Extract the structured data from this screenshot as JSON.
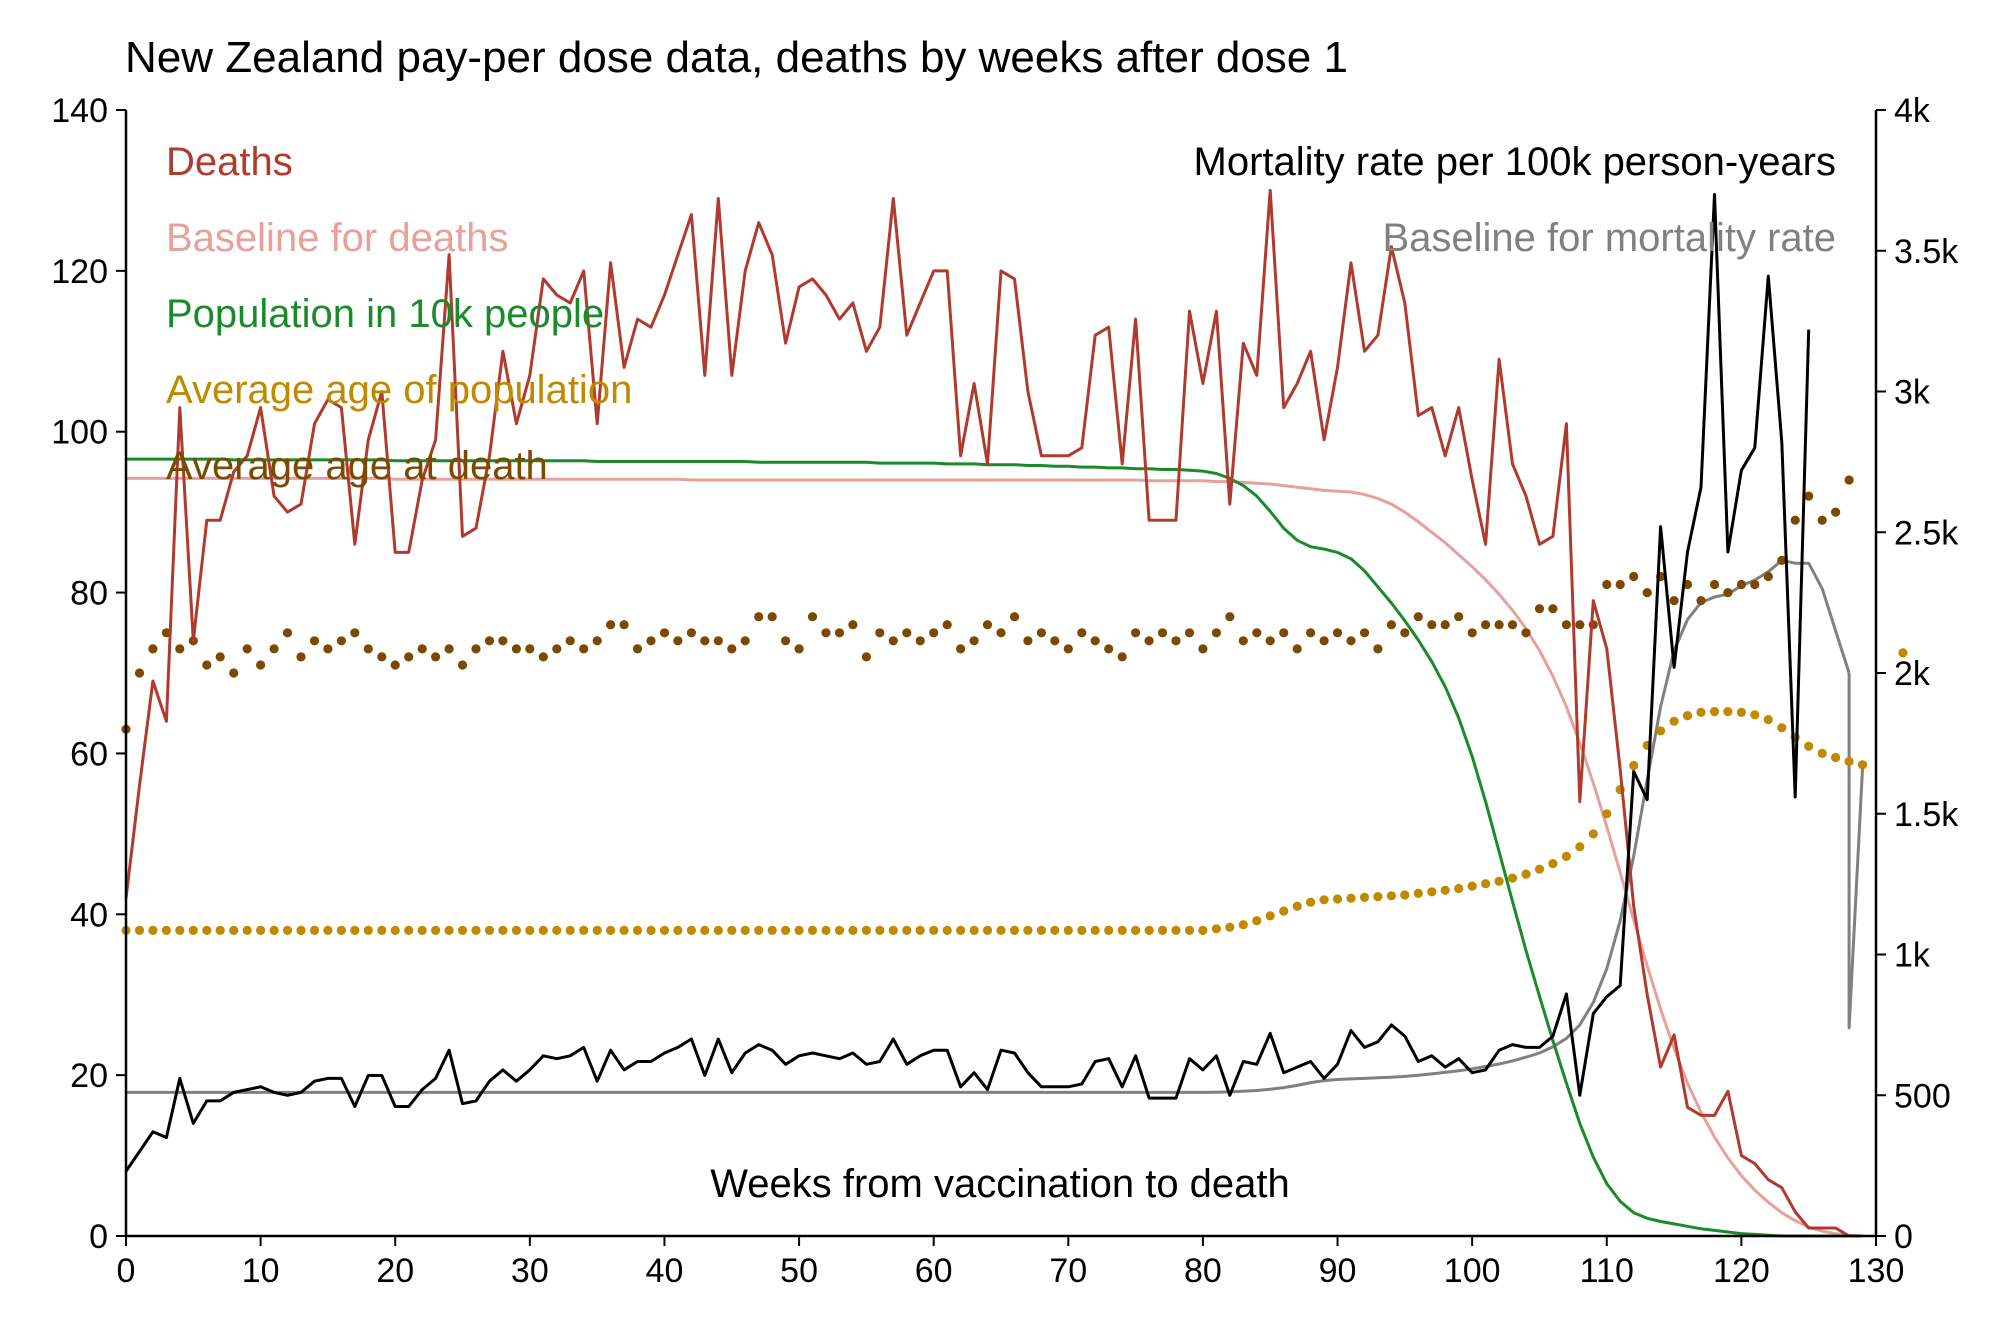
{
  "chart_data": {
    "type": "line",
    "title": "New Zealand pay-per dose data, deaths by weeks after dose 1",
    "xlabel": "Weeks from vaccination to death",
    "xlim": [
      0,
      130
    ],
    "x_ticks": [
      0,
      10,
      20,
      30,
      40,
      50,
      60,
      70,
      80,
      90,
      100,
      110,
      120,
      130
    ],
    "ylim_left": [
      0,
      140
    ],
    "y_ticks_left": [
      0,
      20,
      40,
      60,
      80,
      100,
      120,
      140
    ],
    "ylim_right": [
      0,
      4000
    ],
    "y_ticks_right": [
      0,
      500,
      1000,
      1500,
      2000,
      2500,
      3000,
      3500,
      4000
    ],
    "y_ticklabels_right": [
      "0",
      "500",
      "1k",
      "1.5k",
      "2k",
      "2.5k",
      "3k",
      "3.5k",
      "4k"
    ],
    "grid": false,
    "legend_left": [
      "Deaths",
      "Baseline for deaths",
      "Population in 10k people",
      "Average age of population",
      "Average age at death"
    ],
    "legend_right": [
      "Mortality rate per 100k person-years",
      "Baseline for mortality rate"
    ],
    "colors": {
      "deaths": "#b03a2e",
      "baseline_deaths": "#e8a09a",
      "population": "#1a8a2a",
      "avg_age_pop": "#bf8a00",
      "avg_age_death": "#7a4a00",
      "mortality": "#000000",
      "baseline_mortality": "#808080"
    },
    "series": [
      {
        "name": "Deaths",
        "axis": "left",
        "style": "line",
        "values": [
          42,
          56,
          69,
          64,
          103,
          74,
          89,
          89,
          95,
          97,
          103,
          92,
          90,
          91,
          101,
          104,
          103,
          86,
          99,
          105,
          85,
          85,
          94,
          99,
          122,
          87,
          88,
          97,
          110,
          101,
          107,
          119,
          117,
          116,
          120,
          101,
          121,
          108,
          114,
          113,
          117,
          122,
          127,
          107,
          129,
          107,
          120,
          126,
          122,
          111,
          118,
          119,
          117,
          114,
          116,
          110,
          113,
          129,
          112,
          116,
          120,
          120,
          97,
          106,
          96,
          120,
          119,
          105,
          97,
          97,
          97,
          98,
          112,
          113,
          96,
          114,
          89,
          89,
          89,
          115,
          106,
          115,
          91,
          111,
          107,
          130,
          103,
          106,
          110,
          99,
          108,
          121,
          110,
          112,
          123,
          116,
          102,
          103,
          97,
          103,
          94,
          86,
          109,
          96,
          92,
          86,
          87,
          101,
          54,
          79,
          73,
          58,
          41,
          30,
          21,
          25,
          16,
          15,
          15,
          18,
          10,
          9,
          7,
          6,
          3,
          1,
          1,
          1,
          0,
          0
        ]
      },
      {
        "name": "Baseline for deaths",
        "axis": "left",
        "style": "line",
        "values": [
          94.2,
          94.2,
          94.2,
          94.2,
          94.2,
          94.2,
          94.2,
          94.2,
          94.2,
          94.2,
          94.2,
          94.2,
          94.2,
          94.2,
          94.2,
          94.2,
          94.2,
          94.2,
          94.2,
          94.2,
          94.1,
          94.1,
          94.1,
          94.1,
          94.1,
          94.1,
          94.1,
          94.1,
          94.1,
          94.1,
          94.1,
          94.1,
          94.1,
          94.1,
          94.1,
          94.1,
          94.1,
          94.1,
          94.1,
          94.1,
          94.1,
          94.1,
          94.0,
          94.0,
          94.0,
          94.0,
          94.0,
          94.0,
          94.0,
          94.0,
          94.0,
          94.0,
          94.0,
          94.0,
          94.0,
          94.0,
          94.0,
          94.0,
          94.0,
          94.0,
          94.0,
          94.0,
          94.0,
          94.0,
          94.0,
          94.0,
          94.0,
          94.0,
          94.0,
          94.0,
          94.0,
          94.0,
          94.0,
          94.0,
          94.0,
          94.0,
          93.9,
          93.9,
          93.9,
          93.9,
          93.9,
          93.8,
          93.8,
          93.7,
          93.6,
          93.5,
          93.3,
          93.1,
          92.9,
          92.7,
          92.6,
          92.5,
          92.2,
          91.7,
          91.0,
          90.0,
          88.8,
          87.5,
          86.2,
          84.7,
          83.2,
          81.6,
          79.8,
          77.8,
          75.5,
          72.8,
          69.6,
          65.8,
          61.3,
          56.3,
          50.9,
          45.2,
          39.3,
          33.6,
          28.2,
          23.3,
          19.0,
          15.4,
          12.3,
          9.7,
          7.5,
          5.7,
          4.2,
          2.9,
          1.9,
          1.1,
          0.6,
          0.3,
          0.1,
          0.0
        ]
      },
      {
        "name": "Population in 10k people",
        "axis": "left",
        "style": "line",
        "values": [
          96.6,
          96.6,
          96.6,
          96.6,
          96.6,
          96.6,
          96.6,
          96.6,
          96.5,
          96.5,
          96.5,
          96.5,
          96.5,
          96.5,
          96.5,
          96.5,
          96.5,
          96.5,
          96.5,
          96.5,
          96.4,
          96.4,
          96.4,
          96.4,
          96.4,
          96.4,
          96.4,
          96.4,
          96.4,
          96.4,
          96.4,
          96.4,
          96.4,
          96.4,
          96.4,
          96.3,
          96.3,
          96.3,
          96.3,
          96.3,
          96.3,
          96.3,
          96.3,
          96.3,
          96.3,
          96.3,
          96.3,
          96.2,
          96.2,
          96.2,
          96.2,
          96.2,
          96.2,
          96.2,
          96.2,
          96.2,
          96.1,
          96.1,
          96.1,
          96.1,
          96.1,
          96.0,
          96.0,
          96.0,
          95.9,
          95.9,
          95.9,
          95.8,
          95.8,
          95.7,
          95.7,
          95.6,
          95.6,
          95.5,
          95.5,
          95.4,
          95.4,
          95.3,
          95.3,
          95.2,
          95.1,
          94.8,
          94.2,
          93.3,
          92.0,
          90.1,
          88.0,
          86.5,
          85.7,
          85.4,
          85.0,
          84.2,
          82.7,
          80.7,
          78.7,
          76.5,
          74.1,
          71.4,
          68.3,
          64.4,
          59.6,
          54.0,
          47.8,
          41.6,
          35.5,
          29.8,
          24.3,
          19.0,
          14.0,
          9.8,
          6.5,
          4.3,
          2.9,
          2.2,
          1.8,
          1.5,
          1.2,
          0.9,
          0.7,
          0.5,
          0.3,
          0.2,
          0.1,
          0.0,
          0.0,
          0.0,
          0.0,
          0.0,
          0.0,
          0.0
        ]
      },
      {
        "name": "Average age of population",
        "axis": "left",
        "style": "dots",
        "values": [
          38,
          38,
          38,
          38,
          38,
          38,
          38,
          38,
          38,
          38,
          38,
          38,
          38,
          38,
          38,
          38,
          38,
          38,
          38,
          38,
          38,
          38,
          38,
          38,
          38,
          38,
          38,
          38,
          38,
          38,
          38,
          38,
          38,
          38,
          38,
          38,
          38,
          38,
          38,
          38,
          38,
          38,
          38,
          38,
          38,
          38,
          38,
          38,
          38,
          38,
          38,
          38,
          38,
          38,
          38,
          38,
          38,
          38,
          38,
          38,
          38,
          38,
          38,
          38,
          38,
          38,
          38,
          38,
          38,
          38,
          38,
          38,
          38,
          38,
          38,
          38,
          38,
          38,
          38,
          38,
          38,
          38.2,
          38.4,
          38.7,
          39.2,
          39.8,
          40.4,
          41.0,
          41.5,
          41.8,
          41.9,
          42.0,
          42.1,
          42.2,
          42.3,
          42.4,
          42.6,
          42.8,
          43.0,
          43.2,
          43.5,
          43.8,
          44.1,
          44.5,
          45.0,
          45.6,
          46.3,
          47.2,
          48.4,
          50.0,
          52.5,
          55.5,
          58.5,
          61.0,
          62.8,
          64.0,
          64.7,
          65.1,
          65.2,
          65.2,
          65.1,
          64.8,
          64.2,
          63.2,
          62.0,
          60.9,
          60.0,
          59.5,
          59.0,
          58.6,
          null,
          null,
          72.5
        ]
      },
      {
        "name": "Average age at death",
        "axis": "left",
        "style": "dots",
        "values": [
          63,
          70,
          73,
          75,
          73,
          74,
          71,
          72,
          70,
          73,
          71,
          73,
          75,
          72,
          74,
          73,
          74,
          75,
          73,
          72,
          71,
          72,
          73,
          72,
          73,
          71,
          73,
          74,
          74,
          73,
          73,
          72,
          73,
          74,
          73,
          74,
          76,
          76,
          73,
          74,
          75,
          74,
          75,
          74,
          74,
          73,
          74,
          77,
          77,
          74,
          73,
          77,
          75,
          75,
          76,
          72,
          75,
          74,
          75,
          74,
          75,
          76,
          73,
          74,
          76,
          75,
          77,
          74,
          75,
          74,
          73,
          75,
          74,
          73,
          72,
          75,
          74,
          75,
          74,
          75,
          73,
          75,
          77,
          74,
          75,
          74,
          75,
          73,
          75,
          74,
          75,
          74,
          75,
          73,
          76,
          75,
          77,
          76,
          76,
          77,
          75,
          76,
          76,
          76,
          75,
          78,
          78,
          76,
          76,
          76,
          81,
          81,
          82,
          80,
          82,
          79,
          81,
          79,
          81,
          80,
          81,
          81,
          82,
          84,
          89,
          92,
          89,
          90,
          94,
          null
        ]
      },
      {
        "name": "Mortality rate per 100k person-years",
        "axis": "right",
        "style": "line",
        "values": [
          230,
          300,
          370,
          350,
          560,
          400,
          480,
          480,
          510,
          520,
          530,
          510,
          500,
          510,
          550,
          560,
          560,
          460,
          570,
          570,
          460,
          460,
          520,
          560,
          660,
          470,
          480,
          550,
          590,
          550,
          590,
          640,
          630,
          640,
          670,
          550,
          660,
          590,
          620,
          620,
          650,
          670,
          700,
          570,
          700,
          580,
          650,
          680,
          660,
          610,
          640,
          650,
          640,
          630,
          650,
          610,
          620,
          700,
          610,
          640,
          660,
          660,
          530,
          580,
          520,
          660,
          650,
          580,
          530,
          530,
          530,
          540,
          620,
          630,
          530,
          640,
          490,
          490,
          490,
          630,
          590,
          640,
          500,
          620,
          610,
          720,
          580,
          600,
          620,
          560,
          610,
          730,
          670,
          690,
          750,
          710,
          620,
          640,
          600,
          630,
          580,
          590,
          660,
          680,
          670,
          670,
          710,
          860,
          500,
          790,
          850,
          890,
          1650,
          1550,
          2520,
          2020,
          2430,
          2660,
          3700,
          2430,
          2720,
          2800,
          3410,
          2820,
          1560,
          3220,
          null,
          null,
          null,
          null
        ]
      },
      {
        "name": "Baseline for mortality rate",
        "axis": "right",
        "style": "line",
        "values": [
          510,
          510,
          510,
          510,
          510,
          510,
          510,
          510,
          510,
          510,
          510,
          510,
          510,
          510,
          510,
          510,
          510,
          510,
          510,
          510,
          510,
          510,
          510,
          510,
          510,
          510,
          510,
          510,
          510,
          510,
          510,
          510,
          510,
          510,
          510,
          510,
          510,
          510,
          510,
          510,
          510,
          510,
          510,
          510,
          510,
          510,
          510,
          510,
          510,
          510,
          510,
          510,
          510,
          510,
          510,
          510,
          510,
          510,
          510,
          510,
          510,
          510,
          510,
          510,
          510,
          510,
          510,
          510,
          510,
          510,
          510,
          510,
          510,
          510,
          510,
          510,
          510,
          510,
          510,
          510,
          510,
          511,
          512,
          514,
          517,
          521,
          527,
          535,
          545,
          552,
          556,
          558,
          560,
          562,
          564,
          567,
          571,
          576,
          581,
          587,
          594,
          602,
          611,
          622,
          635,
          650,
          672,
          702,
          750,
          830,
          950,
          1120,
          1350,
          1620,
          1880,
          2080,
          2190,
          2250,
          2270,
          2280,
          2310,
          2330,
          2360,
          2400,
          2390,
          2390,
          2300,
          2150,
          2000,
          null
        ]
      }
    ],
    "series_extra": {
      "Baseline for mortality rate": [
        [
          128,
          740
        ],
        [
          129,
          1660
        ]
      ]
    }
  }
}
